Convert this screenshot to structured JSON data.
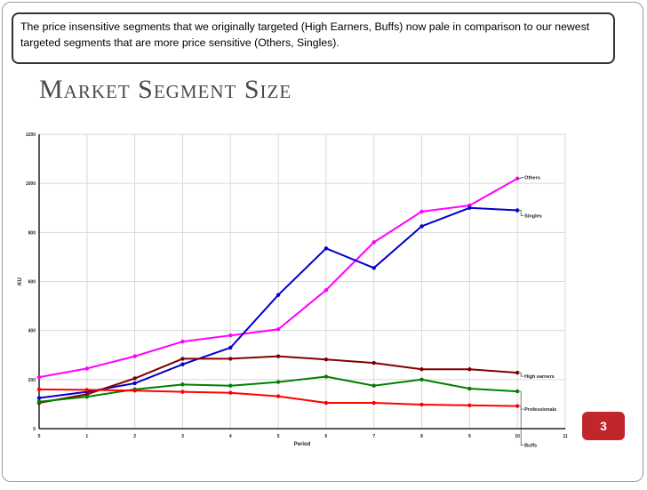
{
  "caption": "The price insensitive segments that we originally targeted (High Earners, Buffs) now pale in comparison to our newest targeted segments that are more price sensitive (Others, Singles).",
  "slide_title": "Market Segment Size",
  "page_number": "3",
  "chart_data": {
    "type": "line",
    "xlabel": "Period",
    "ylabel": "KU",
    "xlim": [
      0,
      11
    ],
    "ylim": [
      0,
      1200
    ],
    "x_ticks": [
      0,
      1,
      2,
      3,
      4,
      5,
      6,
      7,
      8,
      9,
      10,
      11
    ],
    "y_ticks": [
      0,
      200,
      400,
      600,
      800,
      1000,
      1200
    ],
    "grid": true,
    "legend": "end-of-line labels",
    "x": [
      0,
      1,
      2,
      3,
      4,
      5,
      6,
      7,
      8,
      9,
      10
    ],
    "series": [
      {
        "name": "Others",
        "color": "#ff00ff",
        "values": [
          210,
          245,
          295,
          355,
          380,
          405,
          565,
          760,
          885,
          910,
          1020
        ]
      },
      {
        "name": "Singles",
        "color": "#0000cc",
        "values": [
          125,
          150,
          185,
          262,
          330,
          545,
          735,
          655,
          825,
          900,
          890
        ]
      },
      {
        "name": "High earners",
        "color": "#800000",
        "values": [
          105,
          140,
          205,
          285,
          285,
          295,
          282,
          268,
          242,
          242,
          228
        ]
      },
      {
        "name": "Professionals",
        "color": "#008000",
        "values": [
          110,
          130,
          160,
          180,
          175,
          190,
          212,
          175,
          200,
          163,
          152
        ]
      },
      {
        "name": "Buffs",
        "color": "#ff0000",
        "values": [
          160,
          158,
          155,
          150,
          146,
          132,
          105,
          105,
          98,
          95,
          92
        ]
      }
    ]
  }
}
